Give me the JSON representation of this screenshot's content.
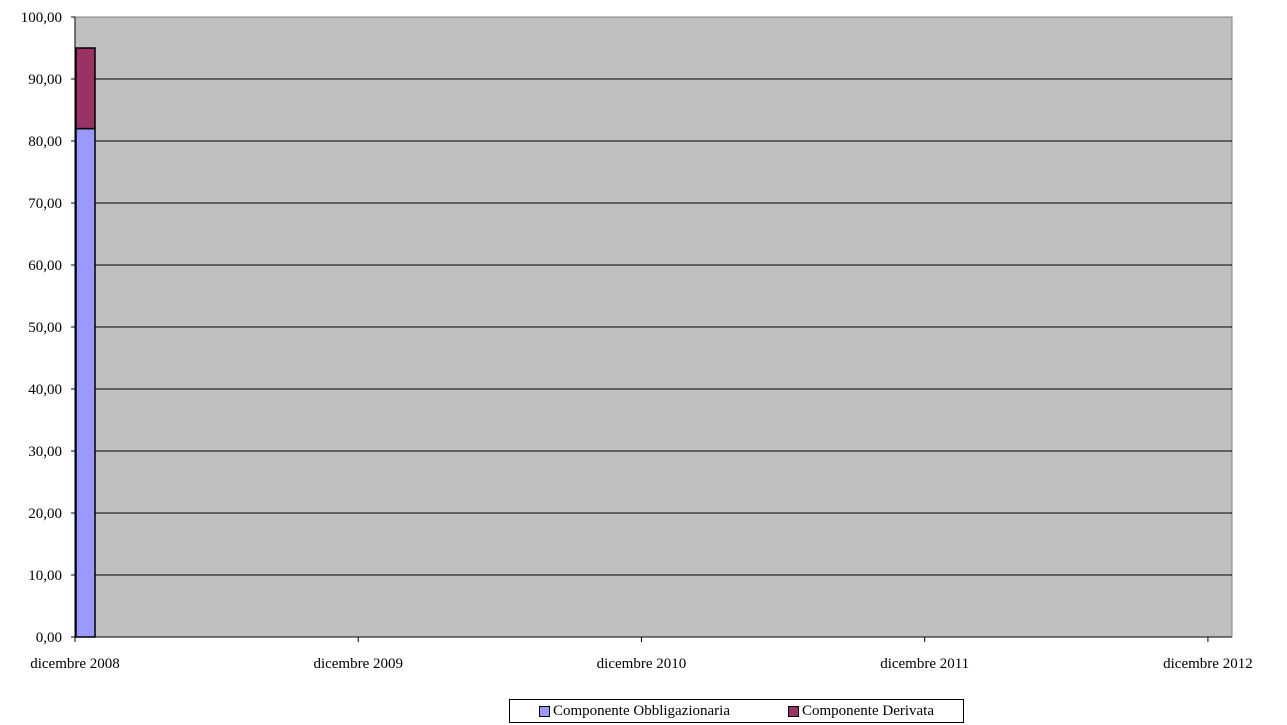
{
  "chart_data": {
    "type": "bar",
    "stacked": true,
    "x_ticks": [
      "dicembre 2008",
      "dicembre 2009",
      "dicembre 2010",
      "dicembre 2011",
      "dicembre 2012"
    ],
    "ylim": [
      0,
      100
    ],
    "y_ticks": [
      "0,00",
      "10,00",
      "20,00",
      "30,00",
      "40,00",
      "50,00",
      "60,00",
      "70,00",
      "80,00",
      "90,00",
      "100,00"
    ],
    "grid": true,
    "legend_position": "bottom",
    "bars": [
      {
        "x": "dicembre 2008",
        "values": [
          82,
          13
        ]
      }
    ],
    "series": [
      {
        "name": "Componente Obbligazionaria",
        "color": "#9999ff",
        "values": [
          82
        ]
      },
      {
        "name": "Componente Derivata",
        "color": "#993366",
        "values": [
          13
        ]
      }
    ],
    "plot_background": "#c0c0c0"
  }
}
